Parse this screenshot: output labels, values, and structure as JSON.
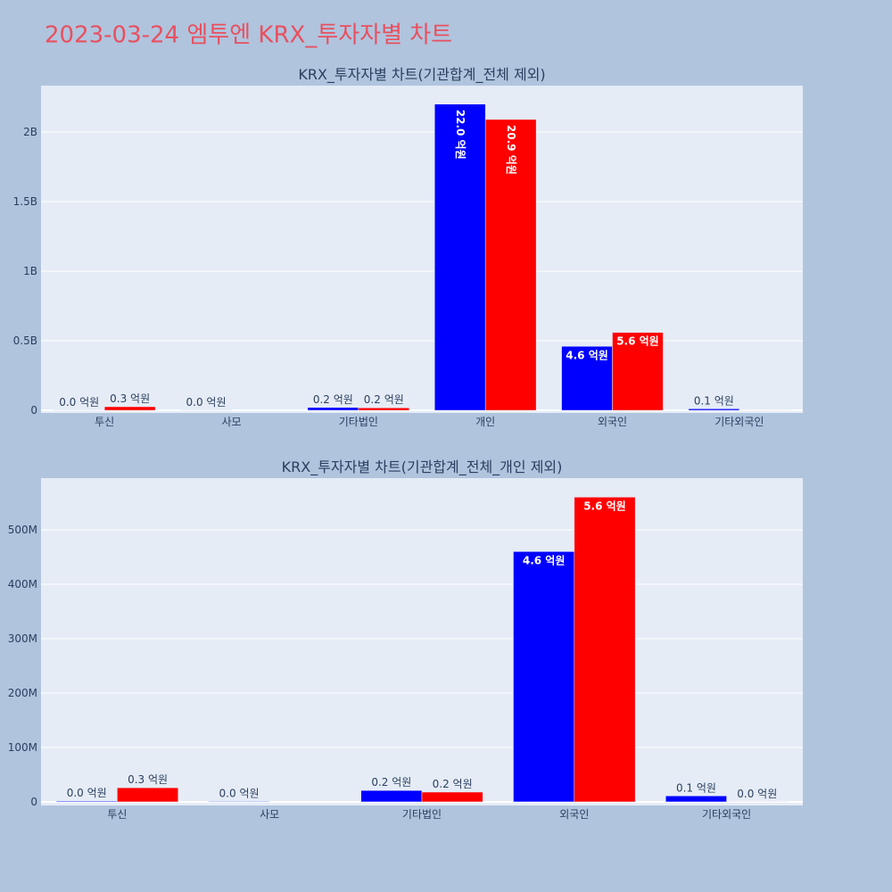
{
  "title": "2023-03-24 엠투엔 KRX_투자자별 차트",
  "chart_data": [
    {
      "type": "bar",
      "title": "KRX_투자자별 차트(기관합계_전체 제외)",
      "categories": [
        "투신",
        "사모",
        "기타법인",
        "개인",
        "외국인",
        "기타외국인"
      ],
      "series": [
        {
          "color": "#0000ff",
          "values": [
            1500000,
            1000000,
            21000000,
            2200000000,
            460000000,
            11000000
          ],
          "value_labels": [
            "0.0 억원",
            "0.0 억원",
            "0.2 억원",
            "22.0 억원",
            "4.6 억원",
            "0.1 억원"
          ]
        },
        {
          "color": "#ff0000",
          "values": [
            26000000,
            null,
            18000000,
            2090000000,
            560000000,
            300000
          ],
          "value_labels": [
            "0.3 억원",
            null,
            "0.2 억원",
            "20.9 억원",
            "5.6 억원",
            null
          ]
        }
      ],
      "ylim": [
        -19000000,
        2333000000
      ],
      "yticks": [
        0,
        {
          "value": 500000000,
          "label": "0.5B"
        },
        {
          "value": 1000000000,
          "label": "1B"
        },
        {
          "value": 1500000000,
          "label": "1.5B"
        },
        {
          "value": 2000000000,
          "label": "2B"
        }
      ],
      "grid": true
    },
    {
      "type": "bar",
      "title": "KRX_투자자별 차트(기관합계_전체_개인 제외)",
      "categories": [
        "투신",
        "사모",
        "기타법인",
        "외국인",
        "기타외국인"
      ],
      "series": [
        {
          "color": "#0000ff",
          "values": [
            1500000,
            1000000,
            21000000,
            460000000,
            11000000
          ],
          "value_labels": [
            "0.0 억원",
            "0.0 억원",
            "0.2 억원",
            "4.6 억원",
            "0.1 억원"
          ]
        },
        {
          "color": "#ff0000",
          "values": [
            26000000,
            null,
            18000000,
            560000000,
            300000
          ],
          "value_labels": [
            "0.3 억원",
            null,
            "0.2 억원",
            "5.6 억원",
            "0.0 억원"
          ]
        }
      ],
      "ylim": [
        -6600000,
        595000000
      ],
      "yticks": [
        0,
        {
          "value": 100000000,
          "label": "100M"
        },
        {
          "value": 200000000,
          "label": "200M"
        },
        {
          "value": 300000000,
          "label": "300M"
        },
        {
          "value": 400000000,
          "label": "400M"
        },
        {
          "value": 500000000,
          "label": "500M"
        }
      ],
      "grid": true
    }
  ]
}
